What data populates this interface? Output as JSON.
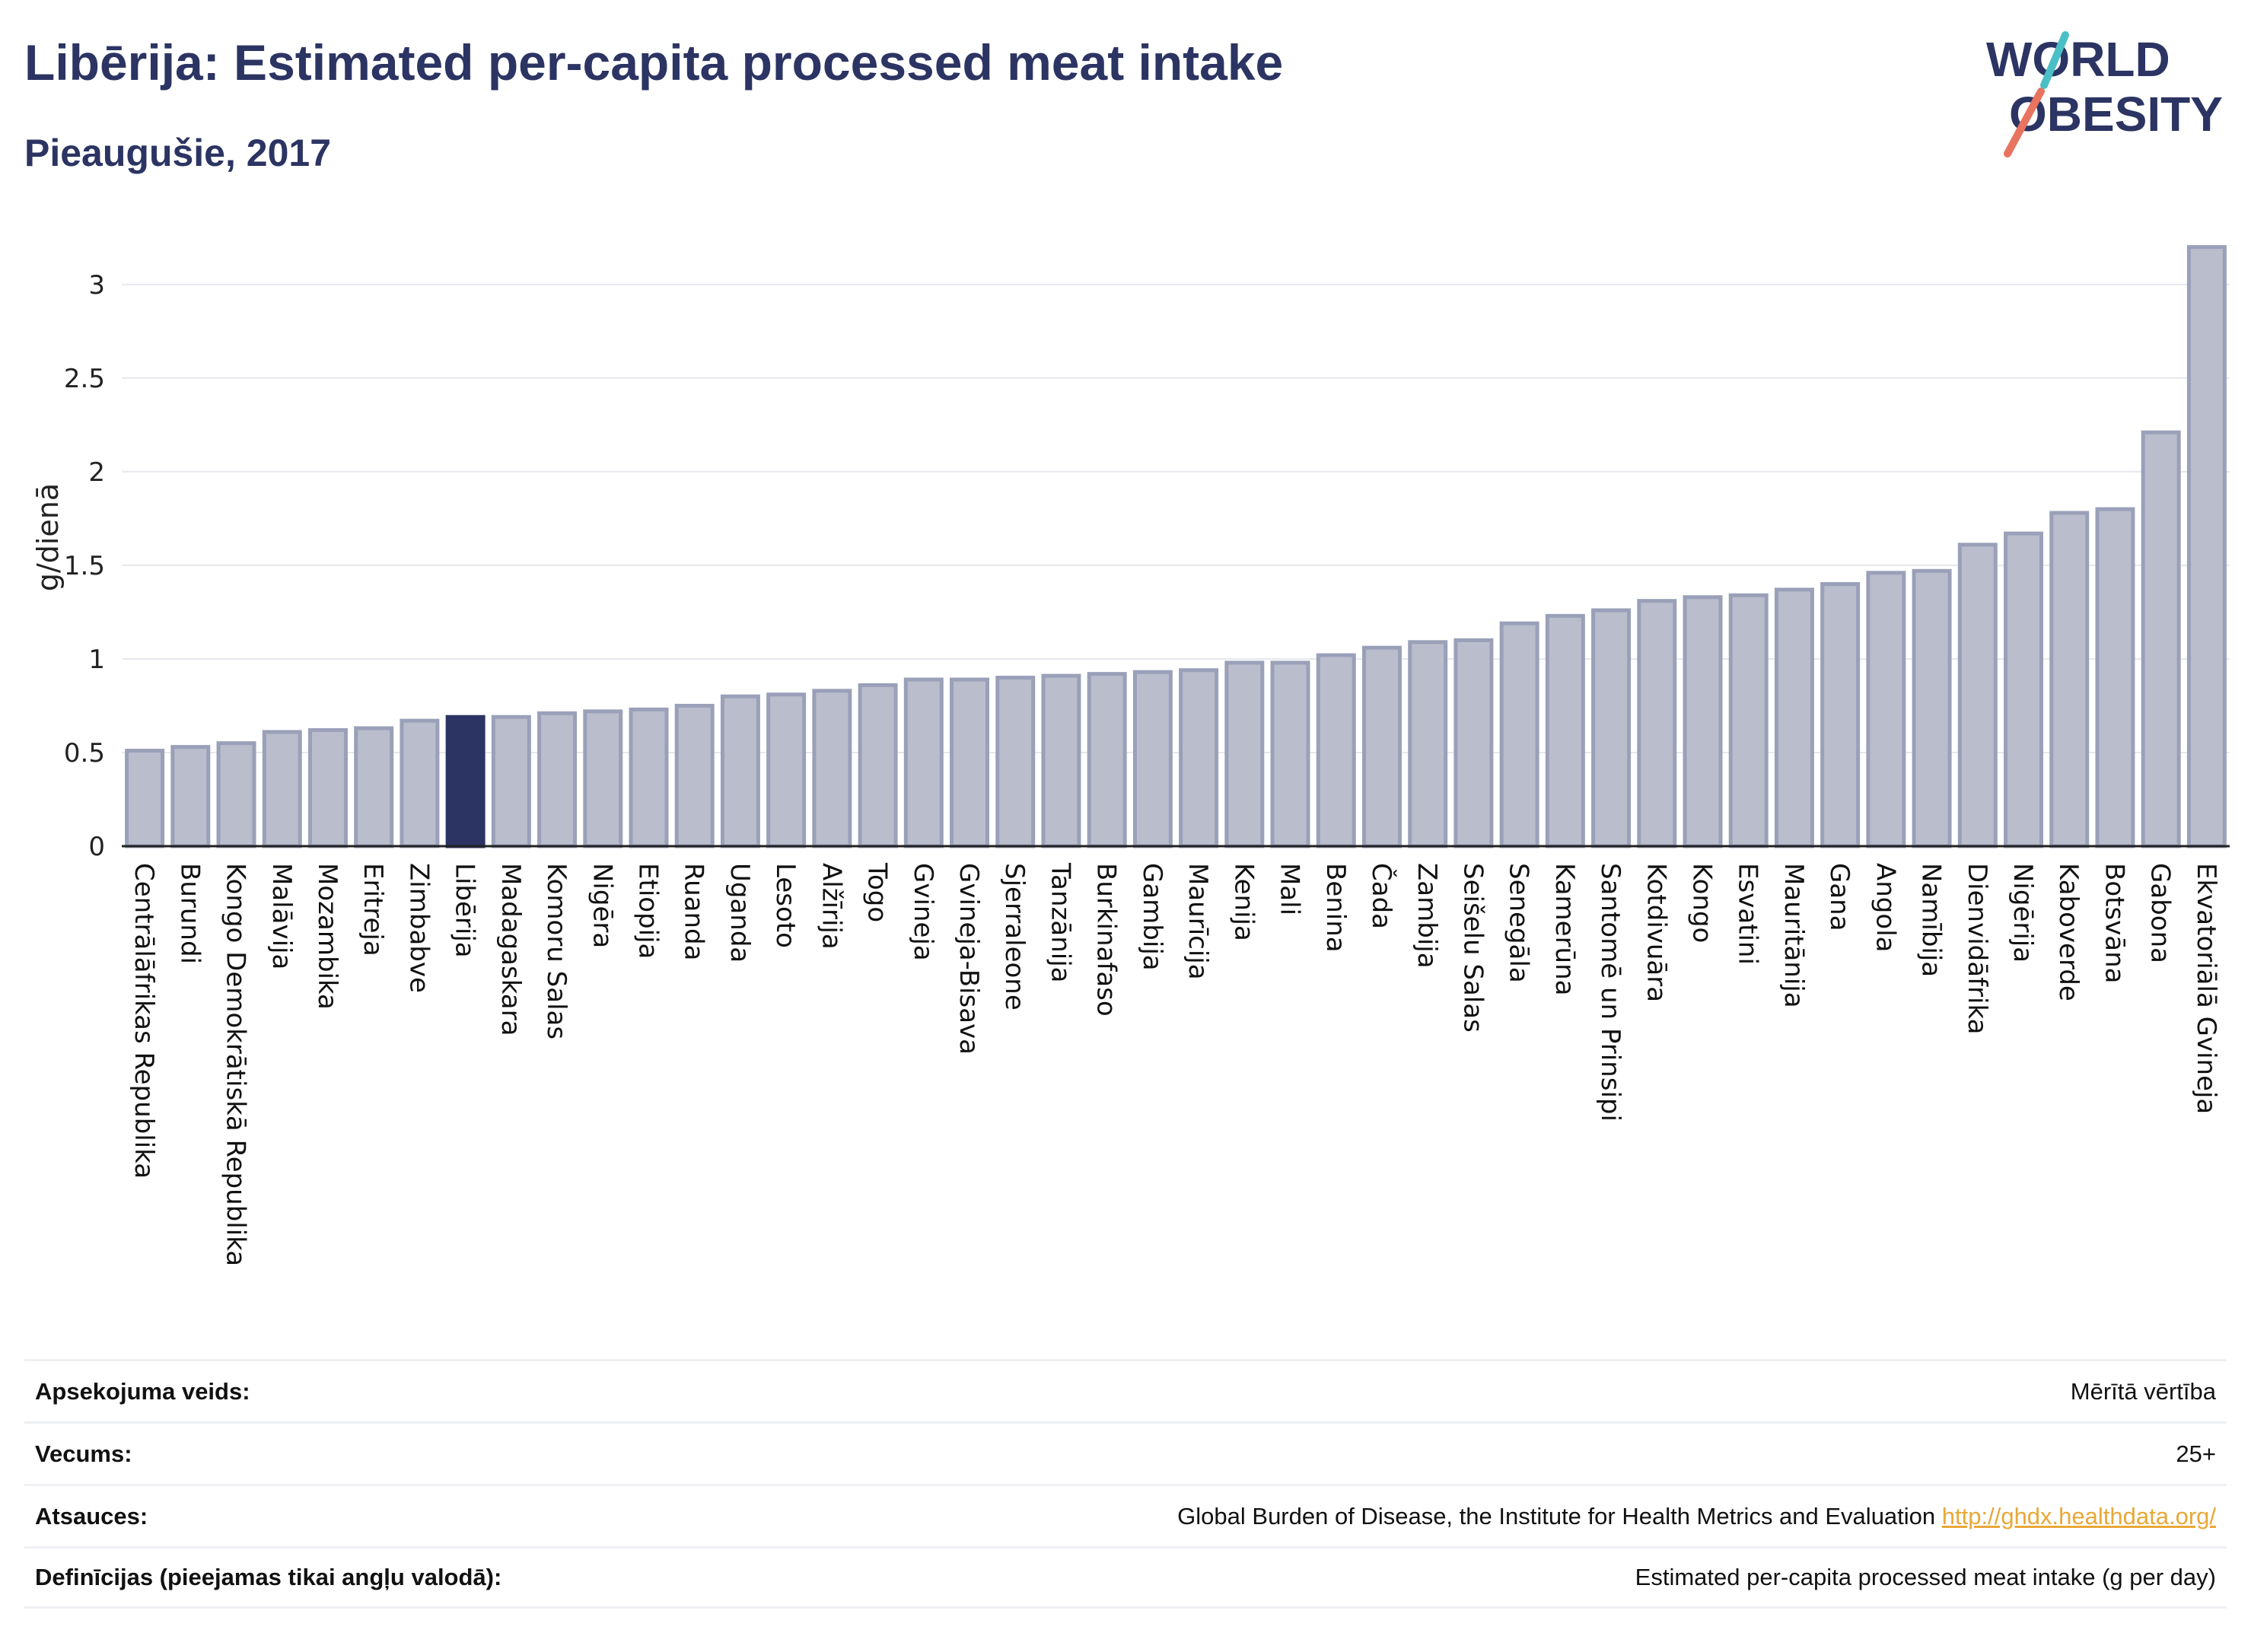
{
  "header": {
    "title": "Libērija: Estimated per-capita processed meat intake",
    "subtitle": "Pieaugušie, 2017"
  },
  "logo": {
    "line1": "WORLD",
    "line2": "OBESITY"
  },
  "colors": {
    "bar": "#b9bdcc",
    "bar_stroke": "#9aa0b8",
    "highlight": "#2b3462",
    "text": "#2b3462"
  },
  "chart_data": {
    "type": "bar",
    "ylabel": "g/dienā",
    "ylim": [
      0,
      3.3
    ],
    "yticks": [
      0,
      0.5,
      1,
      1.5,
      2,
      2.5,
      3
    ],
    "ytick_labels": [
      "0",
      "0.5",
      "1",
      "1.5",
      "2",
      "2.5",
      "3"
    ],
    "grid": true,
    "highlight": "Libērija",
    "categories": [
      "Centrālāfrikas Republika",
      "Burundi",
      "Kongo Demokrātiskā Republika",
      "Malāvija",
      "Mozambika",
      "Eritreja",
      "Zimbabve",
      "Libērija",
      "Madagaskara",
      "Komoru Salas",
      "Nigēra",
      "Etiopija",
      "Ruanda",
      "Uganda",
      "Lesoto",
      "Alžīrija",
      "Togo",
      "Gvineja",
      "Gvineja-Bisava",
      "Sjerraleone",
      "Tanzānija",
      "Burkinafaso",
      "Gambija",
      "Maurīcija",
      "Kenija",
      "Mali",
      "Benina",
      "Čada",
      "Zambija",
      "Seišelu Salas",
      "Senegāla",
      "Kamerūna",
      "Santomē un Prinsipi",
      "Kotdivuāra",
      "Kongo",
      "Esvatini",
      "Mauritānija",
      "Gana",
      "Angola",
      "Namībija",
      "Dienvidāfrika",
      "Nigērija",
      "Kaboverde",
      "Botsvāna",
      "Gabona",
      "Ekvatoriālā Gvineja"
    ],
    "values": [
      0.51,
      0.53,
      0.55,
      0.61,
      0.62,
      0.63,
      0.67,
      0.69,
      0.69,
      0.71,
      0.72,
      0.73,
      0.75,
      0.8,
      0.81,
      0.83,
      0.86,
      0.89,
      0.89,
      0.9,
      0.91,
      0.92,
      0.93,
      0.94,
      0.98,
      0.98,
      1.02,
      1.06,
      1.09,
      1.1,
      1.19,
      1.23,
      1.26,
      1.31,
      1.33,
      1.34,
      1.37,
      1.4,
      1.46,
      1.47,
      1.61,
      1.67,
      1.78,
      1.8,
      2.21,
      3.2
    ]
  },
  "meta": [
    {
      "label": "Apsekojuma veids:",
      "value": "Mērītā vērtība"
    },
    {
      "label": "Vecums:",
      "value": "25+"
    },
    {
      "label": "Atsauces:",
      "value": "Global Burden of Disease, the Institute for Health Metrics and Evaluation",
      "link": "http://ghdx.healthdata.org/"
    },
    {
      "label": "Definīcijas (pieejamas tikai angļu valodā):",
      "value": "Estimated per-capita processed meat intake (g per day)"
    }
  ]
}
